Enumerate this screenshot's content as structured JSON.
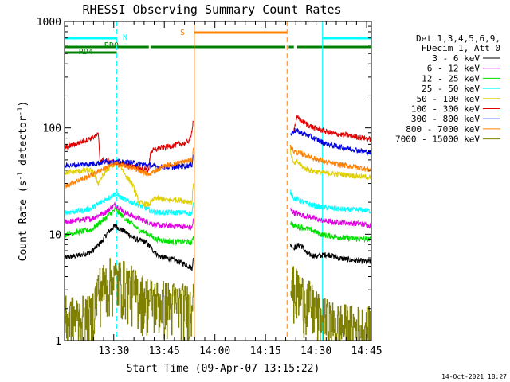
{
  "chart_data": {
    "type": "line",
    "title": "RHESSI Observing Summary Count Rates",
    "xlabel": "Start Time (09-Apr-07 13:15:22)",
    "ylabel_parts": [
      "Count Rate (s",
      "-1",
      " detector",
      "-1",
      ")"
    ],
    "y_scale": "log",
    "ylim": [
      1,
      1000
    ],
    "y_ticks": [
      1,
      10,
      100,
      1000
    ],
    "y_tick_labels": [
      "1",
      "10",
      "100",
      "1000"
    ],
    "xlim_min": [
      0,
      91
    ],
    "x_ticks_min": [
      14.6,
      29.6,
      44.6,
      59.6,
      74.6
    ],
    "x_tick_labels": [
      "13:30",
      "13:45",
      "14:00",
      "14:15",
      "14:30",
      "14:45"
    ],
    "x_tick_label_min": [
      14.6,
      29.6,
      44.6,
      59.6,
      74.6,
      89.6
    ],
    "timestamp": "14-Oct-2021 18:27",
    "legend": {
      "header": [
        "Det 1,3,4,5,6,9,",
        "FDecim 1, Att 0"
      ],
      "entries": [
        {
          "label": "3 - 6 keV",
          "color": "#000000"
        },
        {
          "label": "6 - 12 keV",
          "color": "#e000e0"
        },
        {
          "label": "12 - 25 keV",
          "color": "#00e000"
        },
        {
          "label": "25 - 50 keV",
          "color": "#00ffff"
        },
        {
          "label": "50 - 100 keV",
          "color": "#e0d000"
        },
        {
          "label": "100 - 300 keV",
          "color": "#e00000"
        },
        {
          "label": "300 - 800 keV",
          "color": "#0000e0"
        },
        {
          "label": "800 - 7000 keV",
          "color": "#ff8000"
        },
        {
          "label": "7000 - 15000 keV",
          "color": "#808000"
        }
      ]
    },
    "flags": [
      {
        "label": "N",
        "color": "#00ffff",
        "segments": [
          [
            0,
            15.5
          ],
          [
            76.5,
            91
          ]
        ]
      },
      {
        "label": "RD0",
        "color": "#008000",
        "segments": [
          [
            0,
            15.5
          ]
        ]
      },
      {
        "label": "RD4",
        "color": "#008000",
        "segments": [
          [
            0,
            25
          ],
          [
            25.5,
            65.5
          ],
          [
            66.5,
            68
          ],
          [
            69,
            91
          ]
        ]
      },
      {
        "label": "S",
        "color": "#ff8000",
        "segments": [
          [
            38.5,
            66
          ]
        ]
      }
    ],
    "vlines": [
      {
        "x": 0,
        "color": "#00ffff",
        "style": "dashed"
      },
      {
        "x": 15.5,
        "color": "#00ffff",
        "style": "dashed"
      },
      {
        "x": 38.5,
        "color": "#ff8000",
        "style": "solid"
      },
      {
        "x": 66,
        "color": "#ff8000",
        "style": "dashed"
      },
      {
        "x": 76.5,
        "color": "#00ffff",
        "style": "solid"
      },
      {
        "x": 91,
        "color": "#00ffff",
        "style": "dashed"
      }
    ],
    "series": [
      {
        "name": "3 - 6 keV",
        "color": "#000000",
        "segments": [
          [
            [
              0,
              6
            ],
            [
              4,
              6.3
            ],
            [
              8,
              6.8
            ],
            [
              11,
              8.5
            ],
            [
              13,
              10.5
            ],
            [
              15,
              12
            ],
            [
              18,
              10.5
            ],
            [
              21,
              9
            ],
            [
              24,
              8.5
            ],
            [
              26,
              7.2
            ],
            [
              28,
              6.2
            ],
            [
              32,
              5.8
            ],
            [
              36,
              5.2
            ],
            [
              37.8,
              4.8
            ],
            [
              38.3,
              6
            ]
          ],
          [
            [
              67,
              8
            ],
            [
              68,
              7.5
            ],
            [
              70,
              8
            ],
            [
              72,
              6.5
            ],
            [
              75,
              6.2
            ],
            [
              78,
              6.5
            ],
            [
              81,
              6
            ],
            [
              84,
              5.8
            ],
            [
              88,
              5.6
            ],
            [
              91,
              5.5
            ]
          ]
        ]
      },
      {
        "name": "6 - 12 keV",
        "color": "#e000e0",
        "segments": [
          [
            [
              0,
              13
            ],
            [
              4,
              13.5
            ],
            [
              8,
              14
            ],
            [
              12,
              16
            ],
            [
              15,
              19
            ],
            [
              18,
              16
            ],
            [
              22,
              14
            ],
            [
              25,
              13
            ],
            [
              27,
              12.2
            ],
            [
              30,
              12
            ],
            [
              34,
              12
            ],
            [
              37.8,
              11.5
            ],
            [
              38.3,
              14
            ]
          ],
          [
            [
              67,
              17
            ],
            [
              68,
              16
            ],
            [
              71,
              15
            ],
            [
              73,
              14.5
            ],
            [
              76,
              13.5
            ],
            [
              80,
              13
            ],
            [
              84,
              12.8
            ],
            [
              88,
              12.5
            ],
            [
              91,
              12
            ]
          ]
        ]
      },
      {
        "name": "12 - 25 keV",
        "color": "#00e000",
        "segments": [
          [
            [
              0,
              10
            ],
            [
              4,
              10.5
            ],
            [
              8,
              11
            ],
            [
              12,
              14
            ],
            [
              15,
              17
            ],
            [
              18,
              14
            ],
            [
              22,
              11
            ],
            [
              25,
              10
            ],
            [
              27,
              9
            ],
            [
              32,
              8.5
            ],
            [
              36,
              8.5
            ],
            [
              37.8,
              8.3
            ],
            [
              38.3,
              10
            ]
          ],
          [
            [
              67,
              13
            ],
            [
              68,
              12
            ],
            [
              71,
              11.5
            ],
            [
              73,
              11
            ],
            [
              76,
              10
            ],
            [
              80,
              9.5
            ],
            [
              84,
              9.2
            ],
            [
              88,
              9
            ],
            [
              91,
              9
            ]
          ]
        ]
      },
      {
        "name": "25 - 50 keV",
        "color": "#00ffff",
        "segments": [
          [
            [
              0,
              16
            ],
            [
              4,
              16.5
            ],
            [
              8,
              17.5
            ],
            [
              12,
              21
            ],
            [
              15,
              24
            ],
            [
              18,
              21
            ],
            [
              22,
              19
            ],
            [
              25,
              17
            ],
            [
              27,
              16
            ],
            [
              32,
              16
            ],
            [
              36,
              16
            ],
            [
              37.8,
              15.5
            ],
            [
              38.3,
              20
            ]
          ],
          [
            [
              67,
              25
            ],
            [
              68,
              22
            ],
            [
              71,
              20
            ],
            [
              73,
              19
            ],
            [
              76,
              18
            ],
            [
              80,
              17.5
            ],
            [
              84,
              17
            ],
            [
              88,
              17
            ],
            [
              91,
              16.5
            ]
          ]
        ]
      },
      {
        "name": "50 - 100 keV",
        "color": "#e0d000",
        "segments": [
          [
            [
              0,
              38
            ],
            [
              4,
              39
            ],
            [
              8,
              40
            ],
            [
              10,
              30
            ],
            [
              12,
              38
            ],
            [
              14,
              44
            ],
            [
              16,
              48
            ],
            [
              18,
              36
            ],
            [
              20,
              30
            ],
            [
              22,
              20
            ],
            [
              25,
              19
            ],
            [
              27,
              22
            ],
            [
              30,
              21
            ],
            [
              34,
              21
            ],
            [
              37.8,
              20
            ],
            [
              38.3,
              32
            ]
          ],
          [
            [
              67,
              60
            ],
            [
              68,
              45
            ],
            [
              69,
              48
            ],
            [
              71,
              42
            ],
            [
              73,
              40
            ],
            [
              76,
              38
            ],
            [
              80,
              37
            ],
            [
              84,
              36
            ],
            [
              88,
              35
            ],
            [
              91,
              34
            ]
          ]
        ]
      },
      {
        "name": "100 - 300 keV",
        "color": "#e00000",
        "segments": [
          [
            [
              0,
              65
            ],
            [
              4,
              72
            ],
            [
              8,
              80
            ],
            [
              10,
              86
            ],
            [
              10.5,
              50
            ],
            [
              14,
              48
            ],
            [
              18,
              45
            ],
            [
              22,
              42
            ],
            [
              25,
              40
            ],
            [
              25.5,
              60
            ],
            [
              28,
              64
            ],
            [
              32,
              68
            ],
            [
              36,
              72
            ],
            [
              37.5,
              80
            ],
            [
              38.3,
              125
            ]
          ],
          [
            [
              68,
              95
            ],
            [
              69,
              125
            ],
            [
              71,
              112
            ],
            [
              74,
              100
            ],
            [
              77,
              94
            ],
            [
              80,
              88
            ],
            [
              84,
              85
            ],
            [
              88,
              81
            ],
            [
              91,
              78
            ]
          ]
        ]
      },
      {
        "name": "300 - 800 keV",
        "color": "#0000e0",
        "segments": [
          [
            [
              0,
              44
            ],
            [
              4,
              45
            ],
            [
              8,
              46
            ],
            [
              12,
              48
            ],
            [
              16,
              48
            ],
            [
              20,
              47
            ],
            [
              24,
              45
            ],
            [
              28,
              43
            ],
            [
              32,
              43
            ],
            [
              36,
              44
            ],
            [
              37.8,
              45
            ],
            [
              38.3,
              60
            ]
          ],
          [
            [
              67,
              85
            ],
            [
              68,
              95
            ],
            [
              71,
              88
            ],
            [
              74,
              80
            ],
            [
              77,
              72
            ],
            [
              80,
              68
            ],
            [
              84,
              64
            ],
            [
              88,
              61
            ],
            [
              91,
              58
            ]
          ]
        ]
      },
      {
        "name": "800 - 7000 keV",
        "color": "#ff8000",
        "segments": [
          [
            [
              0,
              28
            ],
            [
              4,
              32
            ],
            [
              8,
              36
            ],
            [
              12,
              42
            ],
            [
              15,
              46
            ],
            [
              18,
              44
            ],
            [
              22,
              40
            ],
            [
              25,
              36
            ],
            [
              27,
              40
            ],
            [
              30,
              44
            ],
            [
              34,
              47
            ],
            [
              37.8,
              50
            ],
            [
              38.3,
              65
            ]
          ],
          [
            [
              67,
              68
            ],
            [
              68,
              60
            ],
            [
              71,
              56
            ],
            [
              74,
              52
            ],
            [
              77,
              48
            ],
            [
              80,
              46
            ],
            [
              84,
              44
            ],
            [
              88,
              42
            ],
            [
              91,
              40
            ]
          ]
        ]
      },
      {
        "name": "7000 - 15000 keV",
        "color": "#808000",
        "noise": true,
        "segments": [
          [
            [
              0,
              1.5
            ],
            [
              8,
              1.5
            ],
            [
              10,
              2.8
            ],
            [
              14,
              3.5
            ],
            [
              18,
              3.2
            ],
            [
              22,
              2.5
            ],
            [
              26,
              2.2
            ],
            [
              30,
              2.1
            ],
            [
              34,
              2.0
            ],
            [
              37.8,
              1.9
            ],
            [
              38.3,
              6
            ]
          ],
          [
            [
              67,
              3
            ],
            [
              70,
              2.5
            ],
            [
              73,
              2.0
            ],
            [
              76,
              1.5
            ],
            [
              80,
              1.3
            ],
            [
              84,
              1.25
            ],
            [
              88,
              1.2
            ],
            [
              91,
              1.2
            ]
          ]
        ]
      }
    ]
  }
}
